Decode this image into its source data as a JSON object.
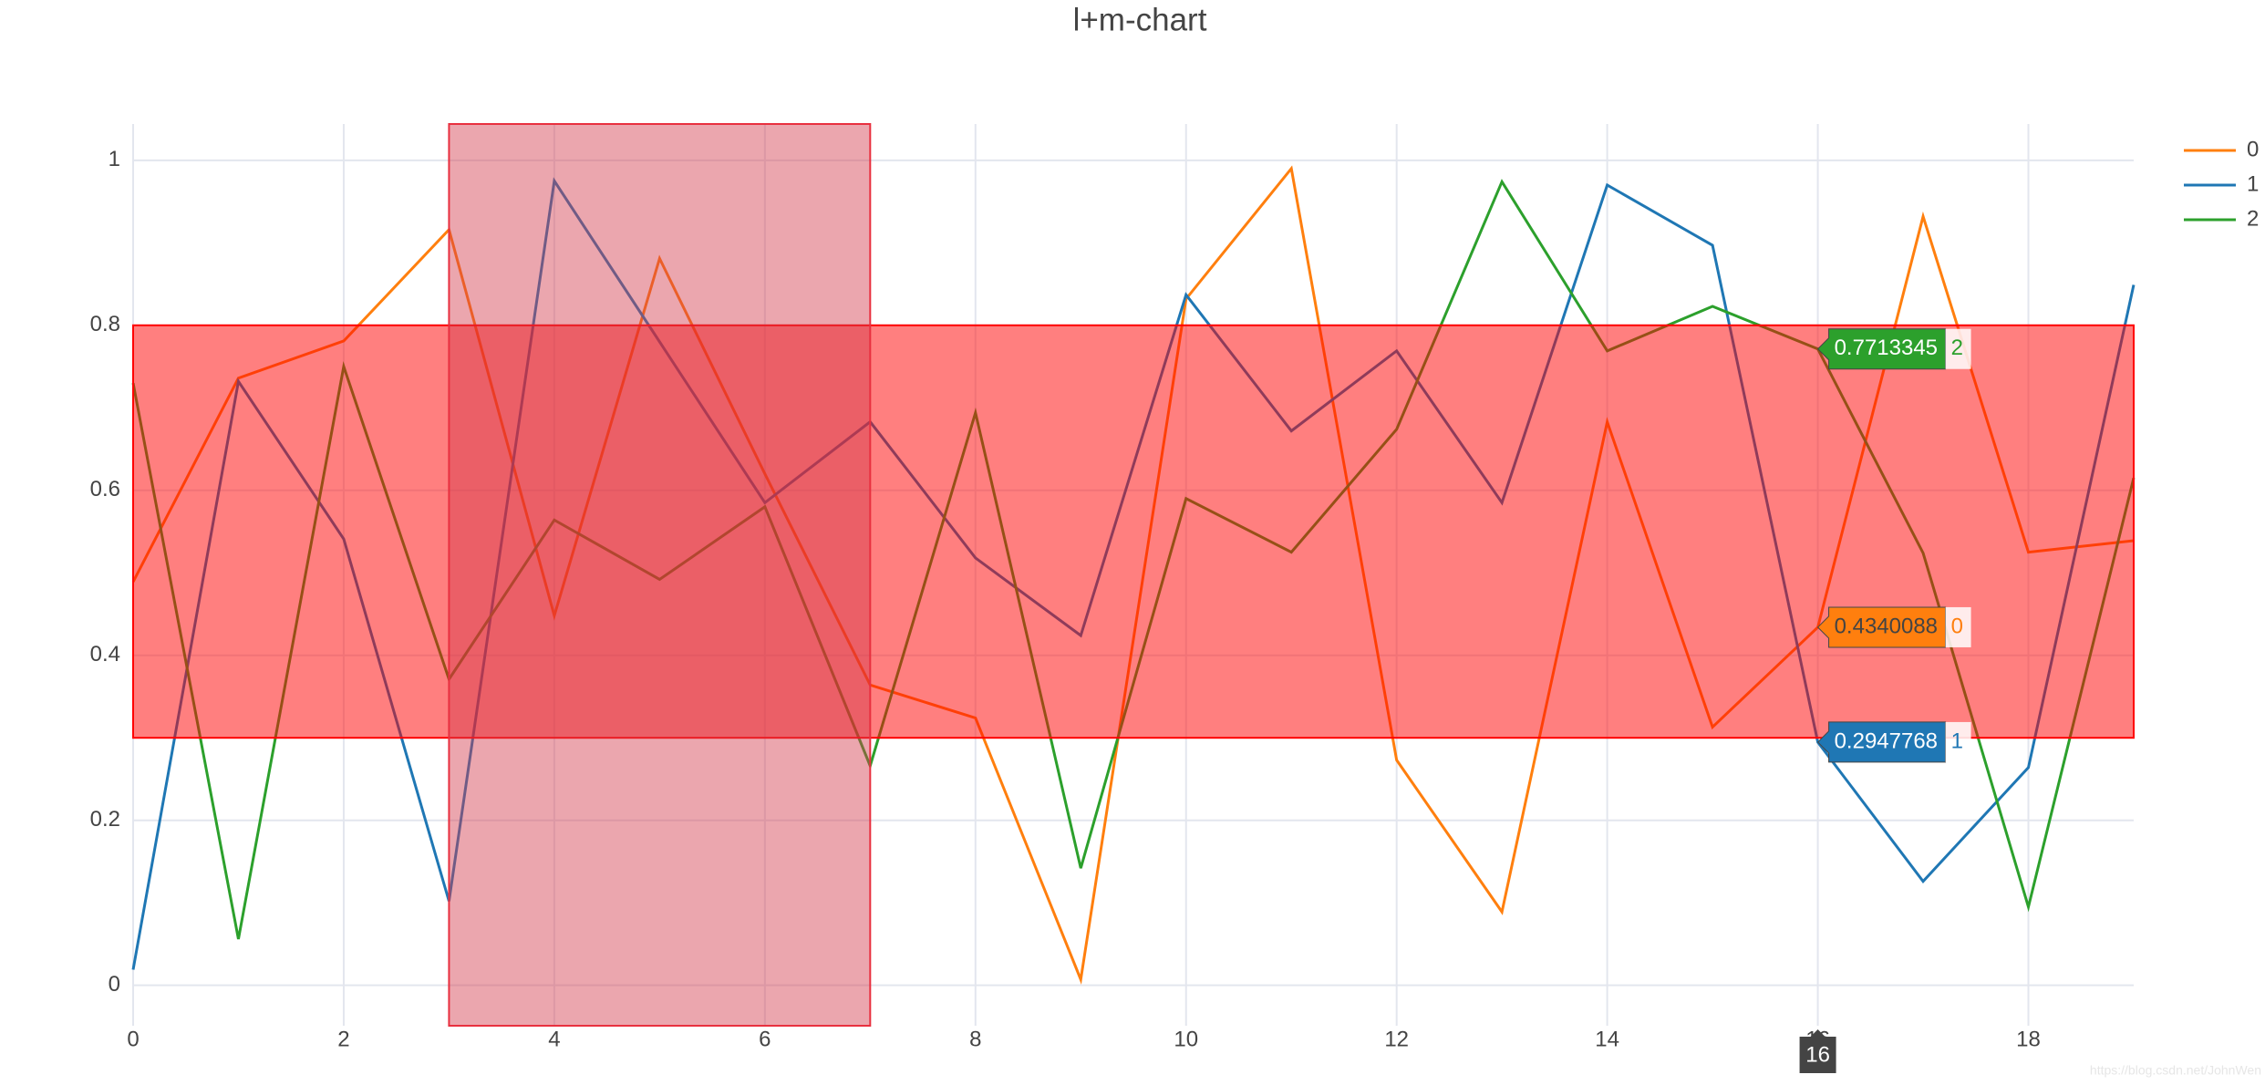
{
  "chart_data": {
    "type": "line",
    "title": "l+m-chart",
    "x": [
      0,
      1,
      2,
      3,
      4,
      5,
      6,
      7,
      8,
      9,
      10,
      11,
      12,
      13,
      14,
      15,
      16,
      17,
      18,
      19
    ],
    "series": [
      {
        "name": "0",
        "color": "#ff7f0e",
        "values": [
          0.489,
          0.736,
          0.781,
          0.916,
          0.448,
          0.881,
          0.62,
          0.364,
          0.324,
          0.007,
          0.832,
          0.99,
          0.273,
          0.089,
          0.683,
          0.313,
          0.4340088,
          0.932,
          0.525,
          0.539
        ]
      },
      {
        "name": "1",
        "color": "#1f77b4",
        "values": [
          0.019,
          0.732,
          0.541,
          0.102,
          0.975,
          0.78,
          0.585,
          0.683,
          0.518,
          0.424,
          0.837,
          0.672,
          0.769,
          0.585,
          0.97,
          0.897,
          0.2947768,
          0.126,
          0.264,
          0.849
        ]
      },
      {
        "name": "2",
        "color": "#2ca02c",
        "values": [
          0.73,
          0.056,
          0.75,
          0.371,
          0.564,
          0.492,
          0.58,
          0.266,
          0.694,
          0.142,
          0.59,
          0.525,
          0.674,
          0.974,
          0.769,
          0.823,
          0.7713345,
          0.524,
          0.095,
          0.615
        ]
      }
    ],
    "xlim": [
      0,
      19
    ],
    "ylim": [
      -0.049,
      1.044
    ],
    "xticks": [
      0,
      2,
      4,
      6,
      8,
      10,
      12,
      14,
      16,
      18
    ],
    "yticks": [
      0,
      0.2,
      0.4,
      0.6,
      0.8,
      1
    ],
    "grid": true,
    "legend": "right",
    "shapes": [
      {
        "x0": 0,
        "x1": 19,
        "y0": 0.3,
        "y1": 0.8,
        "fill": "#ff0000",
        "opacity": 0.5,
        "line": "#ff0000"
      },
      {
        "x0": 3,
        "x1": 7,
        "y0": -0.049,
        "y1": 1.044,
        "fill": "#d3394c",
        "opacity": 0.45,
        "line": "#e8303f"
      }
    ],
    "hover_x": 16,
    "watermark": "https://blog.csdn.net/JohnWen"
  }
}
